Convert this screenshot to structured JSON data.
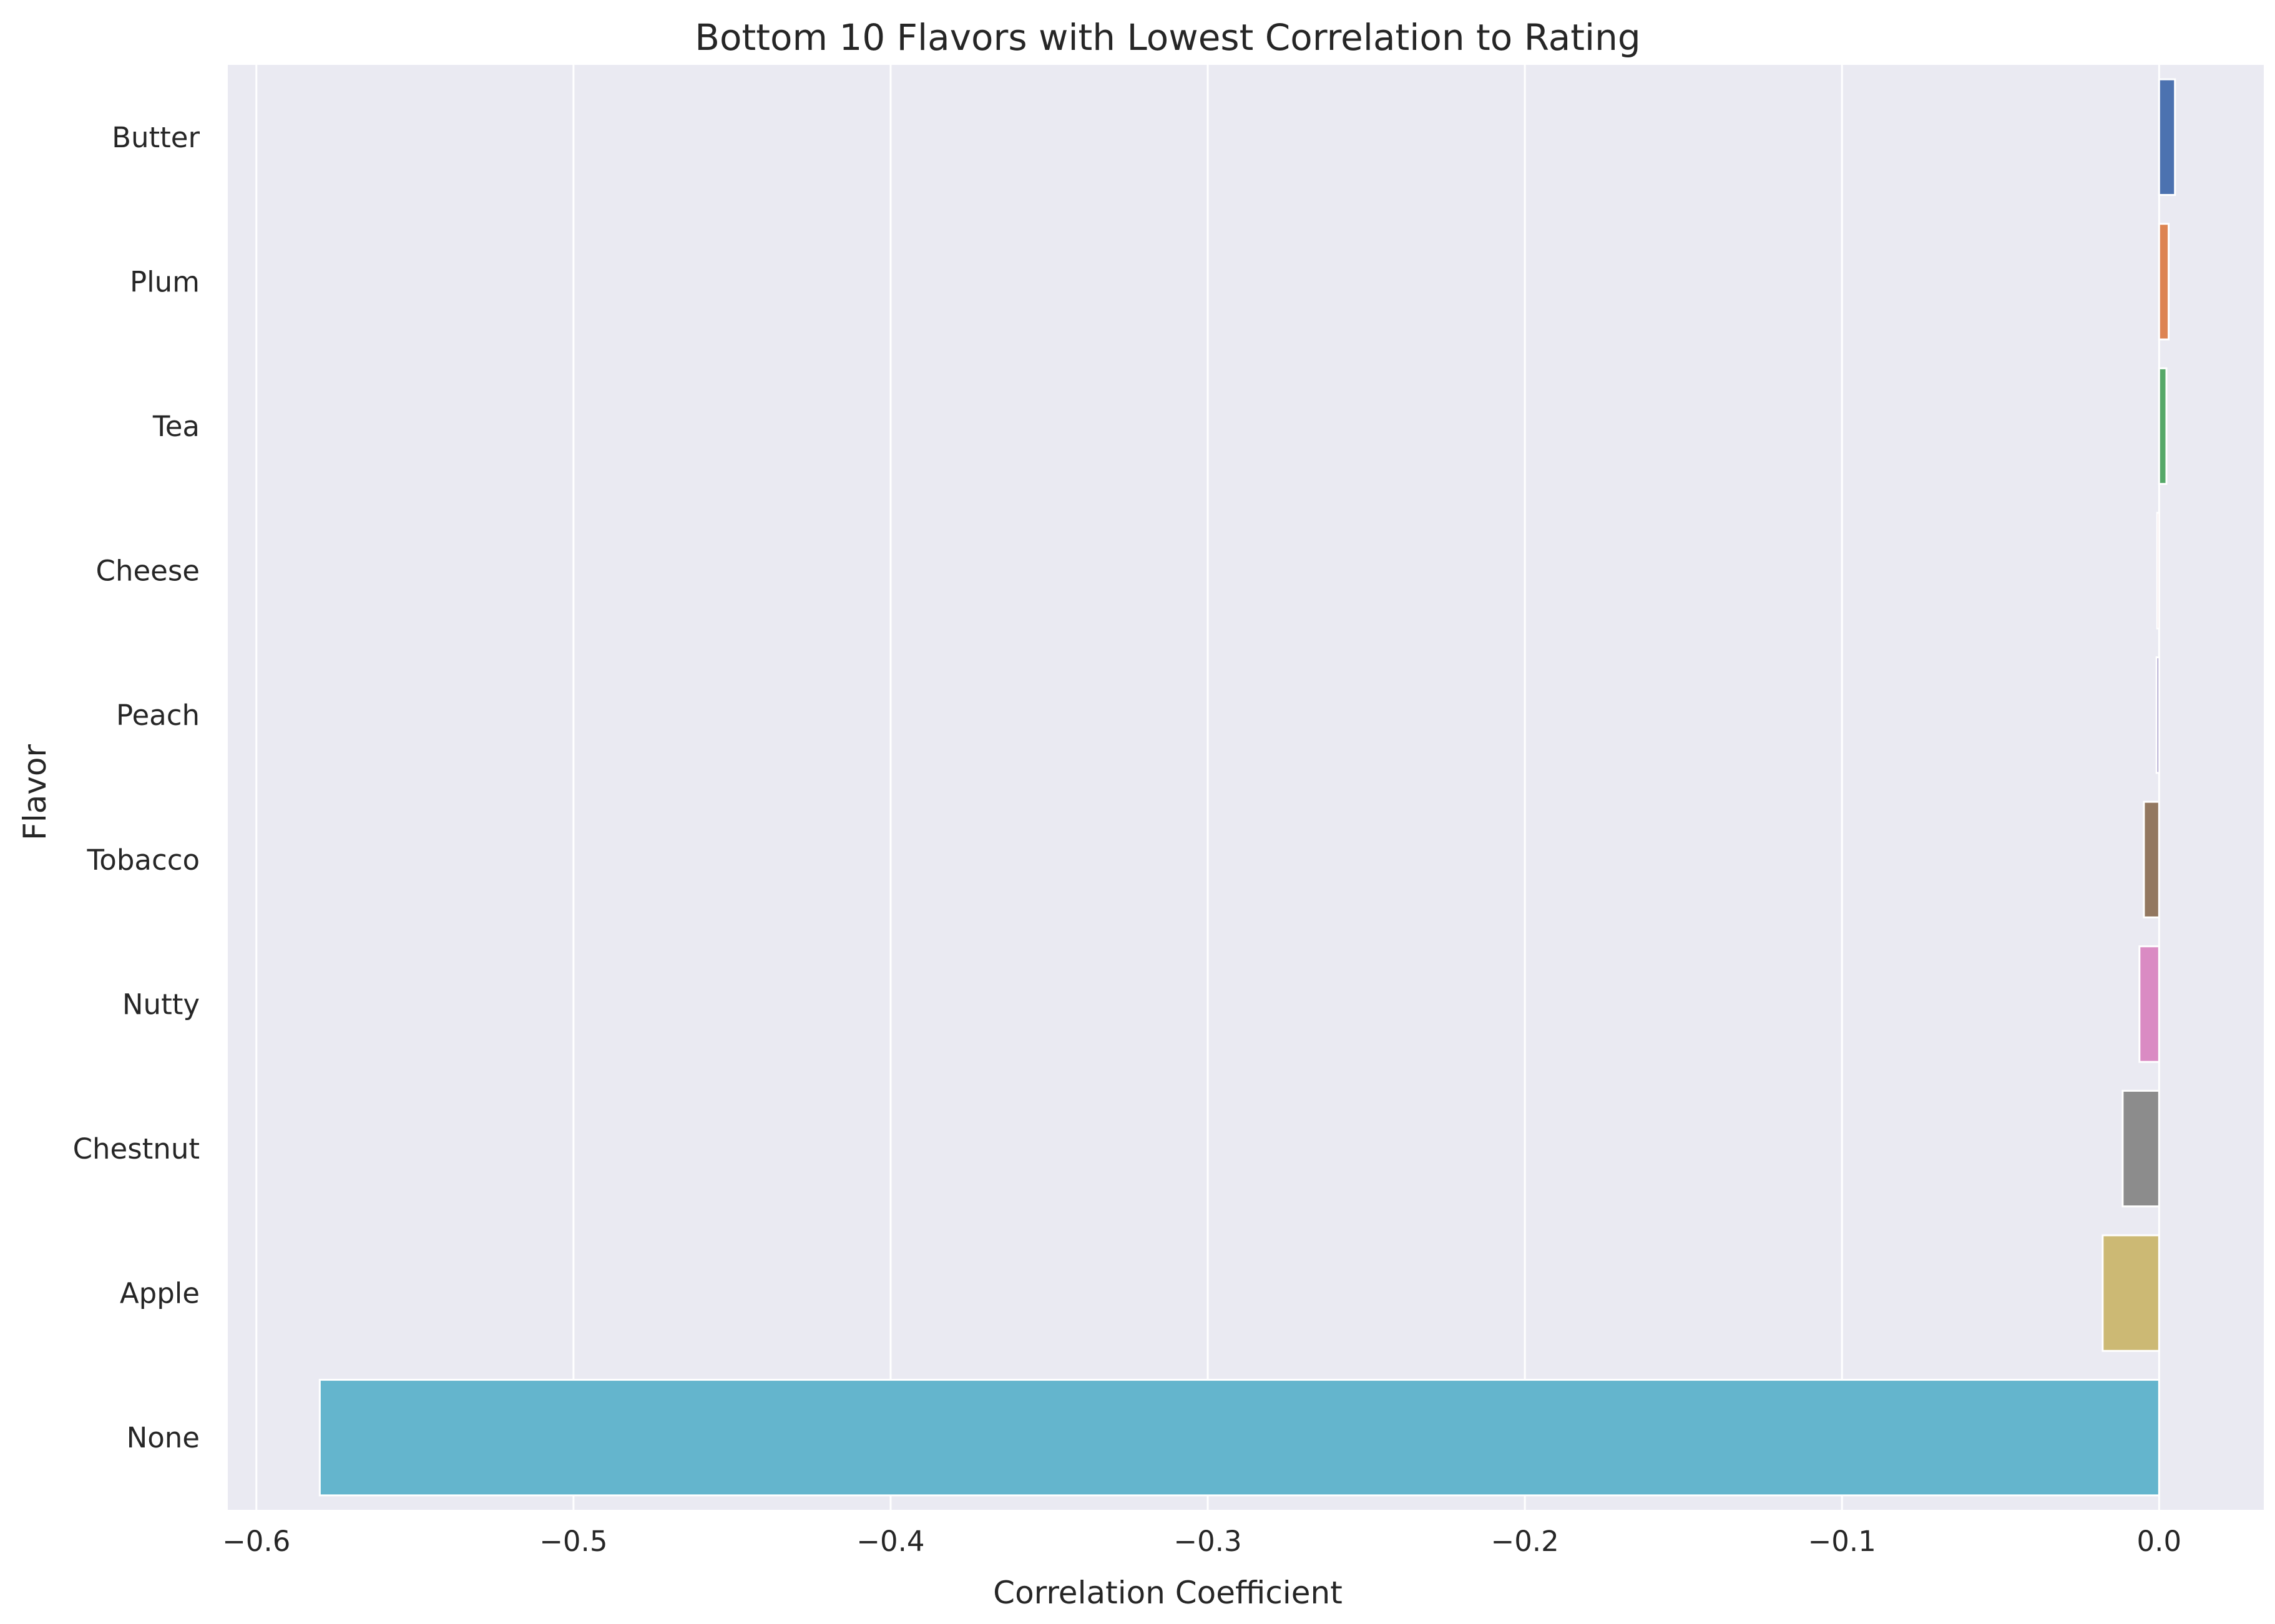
{
  "chart_data": {
    "type": "bar",
    "orientation": "horizontal",
    "title": "Bottom 10 Flavors with Lowest Correlation to Rating",
    "xlabel": "Correlation Coefficient",
    "ylabel": "Flavor",
    "xlim": [
      -0.609,
      0.033
    ],
    "xticks": [
      -0.6,
      -0.5,
      -0.4,
      -0.3,
      -0.2,
      -0.1,
      0.0
    ],
    "xtick_labels": [
      "−0.6",
      "−0.5",
      "−0.4",
      "−0.3",
      "−0.2",
      "−0.1",
      "0.0"
    ],
    "grid": "vertical",
    "background": "#eaeaf2",
    "categories": [
      "Butter",
      "Plum",
      "Tea",
      "Cheese",
      "Peach",
      "Tobacco",
      "Nutty",
      "Chestnut",
      "Apple",
      "None"
    ],
    "values": [
      0.005,
      0.003,
      0.0023,
      -0.0006,
      -0.0008,
      -0.0048,
      -0.0062,
      -0.0115,
      -0.0178,
      -0.58
    ],
    "colors": [
      "#4c72b0",
      "#dd8452",
      "#55a868",
      "#c44e52",
      "#8172b3",
      "#937860",
      "#da8bc3",
      "#8c8c8c",
      "#ccb974",
      "#64b5cd"
    ]
  }
}
